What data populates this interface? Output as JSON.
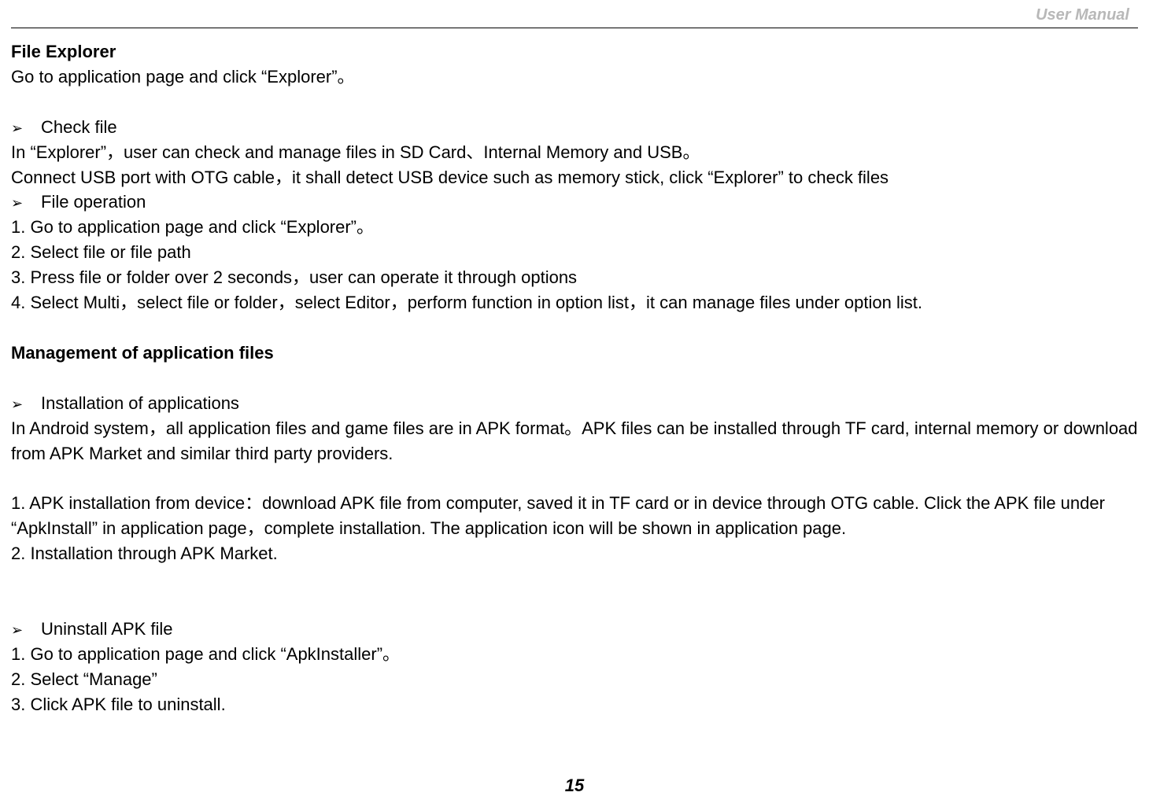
{
  "header": {
    "title": "User Manual"
  },
  "content": {
    "section1_title": "File Explorer",
    "section1_line1": "Go to application page and click “Explorer”。",
    "bullet1": "Check file",
    "para1": "In “Explorer”，user can check and manage files in SD Card、Internal Memory and USB。",
    "para2": "Connect USB port with OTG cable，it shall detect USB device such as memory stick, click “Explorer” to check files",
    "bullet2": "File operation",
    "step1": "1. Go to application page and click “Explorer”。",
    "step2": "2. Select file or file path",
    "step3": "3. Press file or folder over 2 seconds，user can operate it through options",
    "step4": "4. Select Multi，select file or folder，select Editor，perform function in option list，it can manage files under option list.",
    "section2_title": "Management of application files",
    "bullet3": "Installation of applications",
    "para3": "In Android system，all application files and game files are in APK format。APK files can be installed through TF card, internal memory or download from APK Market and similar third party providers.",
    "para4": "1. APK installation from device：download APK file from computer, saved it in TF card or in device through OTG cable. Click the APK file under “ApkInstall” in application page，complete installation. The application icon will be shown in application page.",
    "para5": "2. Installation through APK Market.",
    "bullet4": "Uninstall APK file",
    "uninstall1": "1. Go to application page and click “ApkInstaller”。",
    "uninstall2": "2. Select “Manage”",
    "uninstall3": "3. Click APK file to uninstall."
  },
  "footer": {
    "page_number": "15"
  },
  "styling": {
    "background_color": "#ffffff",
    "text_color": "#000000",
    "header_color": "#b8b8b8",
    "body_fontsize": 22,
    "header_fontsize": 20,
    "bullet_glyph": "➢"
  }
}
